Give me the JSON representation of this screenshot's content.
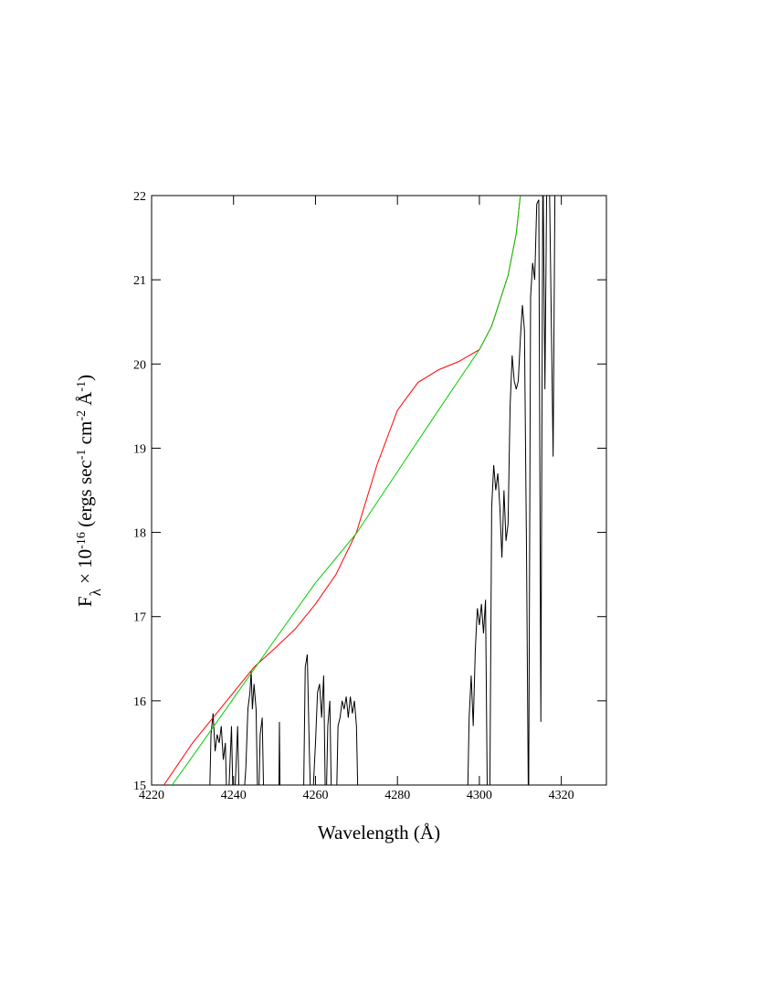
{
  "chart_data": {
    "type": "line",
    "x_label": "Wavelength (Å)",
    "y_label": [
      "F",
      "λ",
      " × 10",
      "-16",
      " (ergs sec",
      "-1",
      " cm",
      "-2",
      " Å",
      "-1",
      ")"
    ],
    "y_label_style": [
      "normal",
      "sub",
      "normal",
      "sup",
      "normal",
      "sup",
      "normal",
      "sup",
      "normal",
      "sup",
      "normal"
    ],
    "xlim": [
      4220,
      4331
    ],
    "ylim": [
      15,
      22
    ],
    "xticks": [
      4220,
      4240,
      4260,
      4280,
      4300,
      4320
    ],
    "yticks": [
      15,
      16,
      17,
      18,
      19,
      20,
      21,
      22
    ],
    "series": [
      {
        "color": "#000000",
        "x": [
          4234,
          4234.5,
          4235,
          4235.5,
          4236,
          4236.5,
          4237,
          4237.5,
          4238,
          4238.5,
          4239.5,
          4240,
          4241,
          4241.5,
          4242,
          4243,
          4243.5,
          4244,
          4244.3,
          4244.6,
          4245,
          4245.5,
          4246,
          4246.5,
          4247,
          4247.5,
          4249,
          4251,
          4251.2,
          4251.4,
          4254,
          4257,
          4257.5,
          4258,
          4258.5,
          4259,
          4260,
          4260.5,
          4261,
          4261.5,
          4262,
          4262.5,
          4263,
          4263.5,
          4264,
          4265,
          4265.5,
          4266,
          4266.5,
          4267,
          4267.5,
          4268,
          4268.5,
          4269,
          4269.5,
          4270,
          4270.5,
          4284,
          4297,
          4297.5,
          4298,
          4298.5,
          4299,
          4299.5,
          4300,
          4300.5,
          4301,
          4301.5,
          4302,
          4302.5,
          4303,
          4303.5,
          4304,
          4304.5,
          4305,
          4305.5,
          4306,
          4306.5,
          4307,
          4307.5,
          4308,
          4308.5,
          4309,
          4309.5,
          4310,
          4310.5,
          4311,
          4311.5,
          4312,
          4312.5,
          4313,
          4313.5,
          4314,
          4314.5,
          4315,
          4315.5,
          4316,
          4316.5,
          4317,
          4318,
          4318.5
        ],
        "values": [
          14.5,
          15.6,
          15.85,
          15.4,
          15.6,
          15.5,
          15.7,
          15.3,
          15.5,
          14.5,
          15.7,
          14.5,
          15.7,
          14.5,
          14.5,
          15.2,
          15.9,
          16.1,
          16.35,
          15.9,
          16.2,
          15.9,
          14.5,
          15.6,
          15.8,
          14.5,
          null,
          14.5,
          15.75,
          14.5,
          null,
          14.5,
          16.4,
          16.55,
          15.4,
          14.5,
          15.5,
          16.1,
          16.2,
          15.8,
          16.3,
          14.5,
          15.7,
          16.0,
          14.5,
          14.5,
          15.7,
          15.8,
          16.0,
          15.9,
          16.05,
          15.8,
          16.05,
          15.85,
          16.0,
          15.7,
          14.5,
          null,
          14.5,
          15.8,
          16.3,
          15.7,
          16.6,
          17.1,
          16.9,
          17.15,
          16.8,
          17.2,
          14.5,
          14.5,
          18.3,
          18.8,
          18.5,
          18.7,
          18.3,
          17.7,
          18.5,
          17.9,
          18.1,
          19.5,
          20.1,
          19.8,
          19.7,
          19.8,
          20.3,
          20.7,
          20.4,
          17.8,
          14.5,
          20.8,
          21.2,
          21.0,
          21.9,
          21.95,
          15.75,
          22.5,
          19.7,
          22.5,
          22.5,
          18.9,
          22.5
        ]
      },
      {
        "color": "#ff0000",
        "x": [
          4223,
          4230,
          4240,
          4245,
          4250,
          4255,
          4260,
          4265,
          4270,
          4275,
          4280,
          4285,
          4290,
          4295,
          4300,
          4303,
          4305,
          4307,
          4309,
          4310
        ],
        "values": [
          15.0,
          15.5,
          16.1,
          16.4,
          16.62,
          16.85,
          17.15,
          17.5,
          18.0,
          18.8,
          19.45,
          19.78,
          19.93,
          20.03,
          20.17,
          20.45,
          20.75,
          21.05,
          21.55,
          22.0
        ]
      },
      {
        "color": "#00cc00",
        "x": [
          4225,
          4230,
          4240,
          4250,
          4260,
          4270,
          4280,
          4290,
          4300,
          4303,
          4305,
          4307,
          4309,
          4310
        ],
        "values": [
          15.0,
          15.34,
          16.03,
          16.72,
          17.4,
          17.99,
          18.72,
          19.45,
          20.17,
          20.45,
          20.75,
          21.05,
          21.55,
          22.0
        ]
      }
    ]
  }
}
